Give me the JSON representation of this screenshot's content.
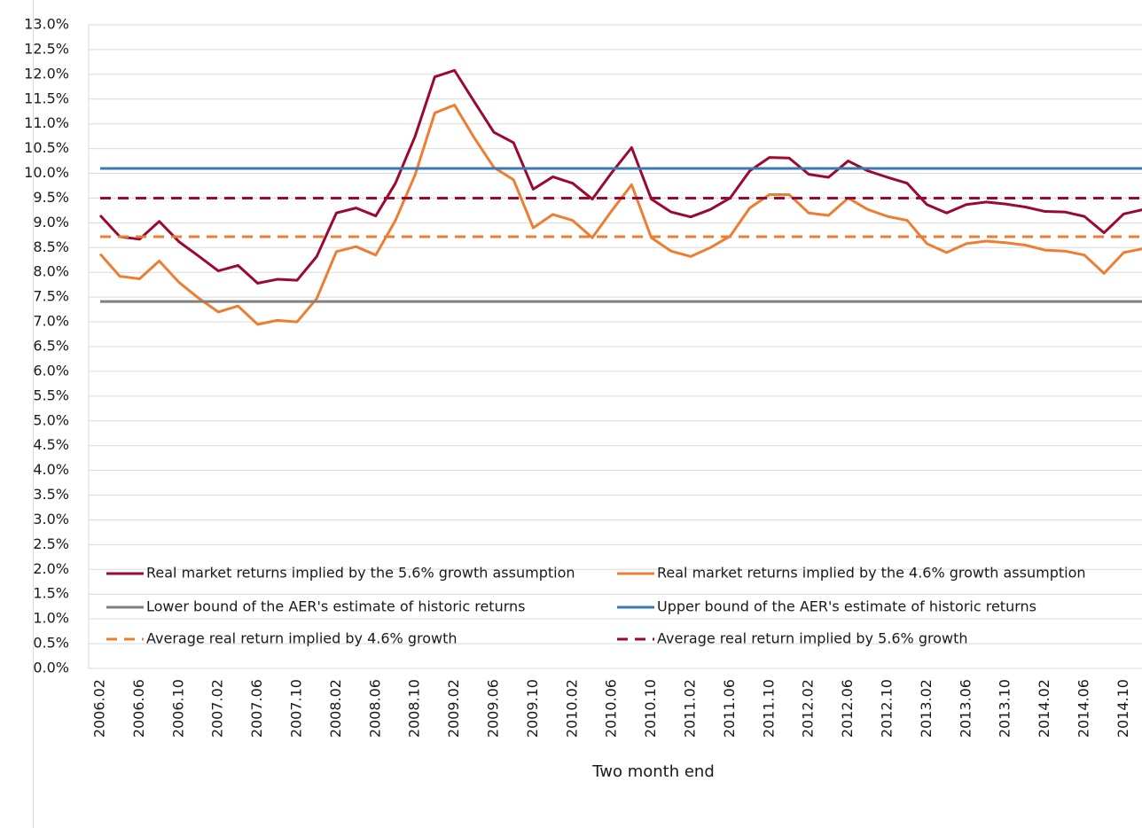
{
  "chart_data": {
    "type": "line",
    "x_label": "Two month end",
    "categories": [
      "2006.02",
      null,
      "2006.06",
      null,
      "2006.10",
      null,
      "2007.02",
      null,
      "2007.06",
      null,
      "2007.10",
      null,
      "2008.02",
      null,
      "2008.06",
      null,
      "2008.10",
      null,
      "2009.02",
      null,
      "2009.06",
      null,
      "2009.10",
      null,
      "2010.02",
      null,
      "2010.06",
      null,
      "2010.10",
      null,
      "2011.02",
      null,
      "2011.06",
      null,
      "2011.10",
      null,
      "2012.02",
      null,
      "2012.06",
      null,
      "2012.10",
      null,
      "2013.02",
      null,
      "2013.06",
      null,
      "2013.10",
      null,
      "2014.02",
      null,
      "2014.06",
      null,
      "2014.10",
      null
    ],
    "ylim": [
      0,
      13
    ],
    "yticks": [
      {
        "value": 0,
        "label": "0.0%"
      },
      {
        "value": 0.5,
        "label": "0.5%"
      },
      {
        "value": 1,
        "label": "1.0%"
      },
      {
        "value": 1.5,
        "label": "1.5%"
      },
      {
        "value": 2,
        "label": "2.0%"
      },
      {
        "value": 2.5,
        "label": "2.5%"
      },
      {
        "value": 3,
        "label": "3.0%"
      },
      {
        "value": 3.5,
        "label": "3.5%"
      },
      {
        "value": 4,
        "label": "4.0%"
      },
      {
        "value": 4.5,
        "label": "4.5%"
      },
      {
        "value": 5,
        "label": "5.0%"
      },
      {
        "value": 5.5,
        "label": "5.5%"
      },
      {
        "value": 6,
        "label": "6.0%"
      },
      {
        "value": 6.5,
        "label": "6.5%"
      },
      {
        "value": 7,
        "label": "7.0%"
      },
      {
        "value": 7.5,
        "label": "7.5%"
      },
      {
        "value": 8,
        "label": "8.0%"
      },
      {
        "value": 8.5,
        "label": "8.5%"
      },
      {
        "value": 9,
        "label": "9.0%"
      },
      {
        "value": 9.5,
        "label": "9.5%"
      },
      {
        "value": 10,
        "label": "10.0%"
      },
      {
        "value": 10.5,
        "label": "10.5%"
      },
      {
        "value": 11,
        "label": "11.0%"
      },
      {
        "value": 11.5,
        "label": "11.5%"
      },
      {
        "value": 12,
        "label": "12.0%"
      },
      {
        "value": 12.5,
        "label": "12.5%"
      },
      {
        "value": 13,
        "label": "13.0%"
      }
    ],
    "grid": true,
    "series": [
      {
        "name": "Real market returns implied by the 5.6% growth assumption",
        "color": "#9b0a2e",
        "style": "solid",
        "values": [
          9.15,
          8.72,
          8.67,
          9.03,
          8.62,
          8.33,
          8.03,
          8.14,
          7.78,
          7.86,
          7.84,
          8.32,
          9.2,
          9.3,
          9.14,
          9.8,
          10.75,
          11.95,
          12.08,
          11.45,
          10.83,
          10.62,
          9.68,
          9.93,
          9.8,
          9.48,
          10.02,
          10.52,
          9.48,
          9.22,
          9.12,
          9.27,
          9.5,
          10.05,
          10.32,
          10.31,
          9.98,
          9.92,
          10.25,
          10.05,
          9.92,
          9.8,
          9.37,
          9.2,
          9.37,
          9.42,
          9.38,
          9.32,
          9.23,
          9.22,
          9.13,
          8.8,
          9.18,
          9.27
        ]
      },
      {
        "name": "Real market returns implied by the 4.6% growth assumption",
        "color": "#ed7d31",
        "style": "solid",
        "values": [
          8.37,
          7.92,
          7.87,
          8.23,
          7.8,
          7.48,
          7.2,
          7.32,
          6.95,
          7.03,
          7.0,
          7.47,
          8.42,
          8.52,
          8.35,
          9.05,
          9.97,
          11.22,
          11.38,
          10.72,
          10.12,
          9.87,
          8.9,
          9.17,
          9.05,
          8.7,
          9.25,
          9.77,
          8.7,
          8.43,
          8.32,
          8.5,
          8.73,
          9.3,
          9.57,
          9.57,
          9.2,
          9.15,
          9.5,
          9.27,
          9.13,
          9.05,
          8.58,
          8.4,
          8.58,
          8.63,
          8.6,
          8.55,
          8.45,
          8.43,
          8.35,
          7.98,
          8.4,
          8.48
        ]
      },
      {
        "name": "Lower bound of the AER's estimate of historic returns",
        "color": "#808080",
        "style": "solid",
        "values": [
          7.41,
          7.41,
          7.41,
          7.41,
          7.41,
          7.41,
          7.41,
          7.41,
          7.41,
          7.41,
          7.41,
          7.41,
          7.41,
          7.41,
          7.41,
          7.41,
          7.41,
          7.41,
          7.41,
          7.41,
          7.41,
          7.41,
          7.41,
          7.41,
          7.41,
          7.41,
          7.41,
          7.41,
          7.41,
          7.41,
          7.41,
          7.41,
          7.41,
          7.41,
          7.41,
          7.41,
          7.41,
          7.41,
          7.41,
          7.41,
          7.41,
          7.41,
          7.41,
          7.41,
          7.41,
          7.41,
          7.41,
          7.41,
          7.41,
          7.41,
          7.41,
          7.41,
          7.41,
          7.41
        ]
      },
      {
        "name": "Upper bound of the AER's estimate of historic returns",
        "color": "#3a78b5",
        "style": "solid",
        "values": [
          10.1,
          10.1,
          10.1,
          10.1,
          10.1,
          10.1,
          10.1,
          10.1,
          10.1,
          10.1,
          10.1,
          10.1,
          10.1,
          10.1,
          10.1,
          10.1,
          10.1,
          10.1,
          10.1,
          10.1,
          10.1,
          10.1,
          10.1,
          10.1,
          10.1,
          10.1,
          10.1,
          10.1,
          10.1,
          10.1,
          10.1,
          10.1,
          10.1,
          10.1,
          10.1,
          10.1,
          10.1,
          10.1,
          10.1,
          10.1,
          10.1,
          10.1,
          10.1,
          10.1,
          10.1,
          10.1,
          10.1,
          10.1,
          10.1,
          10.1,
          10.1,
          10.1,
          10.1,
          10.1
        ]
      },
      {
        "name": "Average real return implied by 4.6% growth",
        "color": "#ed7d31",
        "style": "dashed",
        "values": [
          8.72,
          8.72,
          8.72,
          8.72,
          8.72,
          8.72,
          8.72,
          8.72,
          8.72,
          8.72,
          8.72,
          8.72,
          8.72,
          8.72,
          8.72,
          8.72,
          8.72,
          8.72,
          8.72,
          8.72,
          8.72,
          8.72,
          8.72,
          8.72,
          8.72,
          8.72,
          8.72,
          8.72,
          8.72,
          8.72,
          8.72,
          8.72,
          8.72,
          8.72,
          8.72,
          8.72,
          8.72,
          8.72,
          8.72,
          8.72,
          8.72,
          8.72,
          8.72,
          8.72,
          8.72,
          8.72,
          8.72,
          8.72,
          8.72,
          8.72,
          8.72,
          8.72,
          8.72,
          8.72
        ]
      },
      {
        "name": "Average real return implied by 5.6% growth",
        "color": "#9b0a2e",
        "style": "dashed",
        "values": [
          9.5,
          9.5,
          9.5,
          9.5,
          9.5,
          9.5,
          9.5,
          9.5,
          9.5,
          9.5,
          9.5,
          9.5,
          9.5,
          9.5,
          9.5,
          9.5,
          9.5,
          9.5,
          9.5,
          9.5,
          9.5,
          9.5,
          9.5,
          9.5,
          9.5,
          9.5,
          9.5,
          9.5,
          9.5,
          9.5,
          9.5,
          9.5,
          9.5,
          9.5,
          9.5,
          9.5,
          9.5,
          9.5,
          9.5,
          9.5,
          9.5,
          9.5,
          9.5,
          9.5,
          9.5,
          9.5,
          9.5,
          9.5,
          9.5,
          9.5,
          9.5,
          9.5,
          9.5,
          9.5
        ]
      }
    ]
  }
}
